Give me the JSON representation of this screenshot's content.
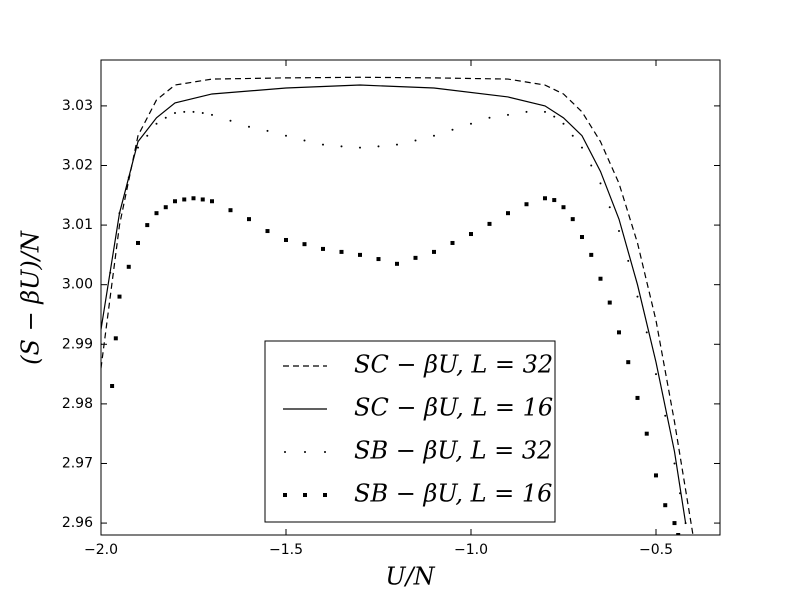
{
  "chart_data": {
    "type": "line",
    "x_label": "U/N",
    "y_label": "(S − βU)/N",
    "xlim": [
      -2.0,
      -0.327
    ],
    "ylim": [
      2.958,
      3.0377
    ],
    "xticks": [
      {
        "value": -2.0,
        "label": "−2.0"
      },
      {
        "value": -1.5,
        "label": "−1.5"
      },
      {
        "value": -1.0,
        "label": "−1.0"
      },
      {
        "value": -0.5,
        "label": "−0.5"
      }
    ],
    "yticks": [
      2.96,
      2.97,
      2.98,
      2.99,
      {
        "value": 3.0,
        "label": "3.00"
      },
      3.01,
      3.02,
      3.03
    ],
    "legend": "lower center",
    "series": [
      {
        "name": "SC − βU, L = 32",
        "style": "dashed",
        "color": "#000000",
        "x": [
          -2.0,
          -1.95,
          -1.9,
          -1.85,
          -1.8,
          -1.7,
          -1.5,
          -1.3,
          -1.1,
          -0.9,
          -0.8,
          -0.75,
          -0.7,
          -0.65,
          -0.6,
          -0.55,
          -0.5,
          -0.45,
          -0.4
        ],
        "values": [
          2.986,
          3.01,
          3.025,
          3.031,
          3.0335,
          3.0345,
          3.0347,
          3.0348,
          3.0347,
          3.0345,
          3.0335,
          3.032,
          3.029,
          3.024,
          3.017,
          3.007,
          2.994,
          2.977,
          2.958
        ]
      },
      {
        "name": "SC − βU, L = 16",
        "style": "solid",
        "color": "#000000",
        "x": [
          -2.0,
          -1.95,
          -1.9,
          -1.85,
          -1.8,
          -1.7,
          -1.5,
          -1.3,
          -1.1,
          -0.9,
          -0.8,
          -0.75,
          -0.7,
          -0.65,
          -0.6,
          -0.55,
          -0.5,
          -0.45,
          -0.42
        ],
        "values": [
          2.9925,
          3.012,
          3.024,
          3.028,
          3.0305,
          3.032,
          3.033,
          3.0335,
          3.033,
          3.0315,
          3.03,
          3.028,
          3.025,
          3.019,
          3.011,
          3.0,
          2.987,
          2.972,
          2.96
        ]
      },
      {
        "name": "SB − βU, L = 32",
        "style": "dots",
        "color": "#000000",
        "x": [
          -2.0,
          -1.975,
          -1.95,
          -1.925,
          -1.9,
          -1.875,
          -1.85,
          -1.825,
          -1.8,
          -1.775,
          -1.75,
          -1.725,
          -1.7,
          -1.65,
          -1.6,
          -1.55,
          -1.5,
          -1.45,
          -1.4,
          -1.35,
          -1.3,
          -1.25,
          -1.2,
          -1.15,
          -1.1,
          -1.05,
          -1.0,
          -0.95,
          -0.9,
          -0.85,
          -0.8,
          -0.775,
          -0.75,
          -0.725,
          -0.7,
          -0.675,
          -0.65,
          -0.625,
          -0.6,
          -0.575,
          -0.55,
          -0.525,
          -0.5,
          -0.475,
          -0.45,
          -0.435,
          -0.42
        ],
        "values": [
          2.99,
          3.002,
          3.012,
          3.018,
          3.023,
          3.025,
          3.027,
          3.028,
          3.0288,
          3.029,
          3.029,
          3.0288,
          3.0285,
          3.0275,
          3.0265,
          3.0258,
          3.025,
          3.0242,
          3.0235,
          3.0232,
          3.023,
          3.0232,
          3.0235,
          3.0242,
          3.025,
          3.026,
          3.027,
          3.028,
          3.0285,
          3.029,
          3.029,
          3.0282,
          3.027,
          3.025,
          3.023,
          3.02,
          3.017,
          3.013,
          3.009,
          3.004,
          2.998,
          2.992,
          2.985,
          2.978,
          2.97,
          2.965,
          2.96
        ]
      },
      {
        "name": "SB − βU, L = 16",
        "style": "x",
        "color": "#000000",
        "x": [
          -1.97,
          -1.96,
          -1.95,
          -1.925,
          -1.9,
          -1.875,
          -1.85,
          -1.825,
          -1.8,
          -1.775,
          -1.75,
          -1.725,
          -1.7,
          -1.65,
          -1.6,
          -1.55,
          -1.5,
          -1.45,
          -1.4,
          -1.35,
          -1.3,
          -1.25,
          -1.2,
          -1.15,
          -1.1,
          -1.05,
          -1.0,
          -0.95,
          -0.9,
          -0.85,
          -0.8,
          -0.775,
          -0.75,
          -0.725,
          -0.7,
          -0.675,
          -0.65,
          -0.625,
          -0.6,
          -0.575,
          -0.55,
          -0.525,
          -0.5,
          -0.475,
          -0.45,
          -0.44
        ],
        "values": [
          2.983,
          2.991,
          2.998,
          3.003,
          3.007,
          3.01,
          3.012,
          3.013,
          3.014,
          3.0143,
          3.0145,
          3.0143,
          3.014,
          3.0125,
          3.011,
          3.009,
          3.0075,
          3.0068,
          3.006,
          3.0055,
          3.005,
          3.0043,
          3.0035,
          3.0045,
          3.0055,
          3.007,
          3.0085,
          3.0102,
          3.012,
          3.0135,
          3.0145,
          3.0142,
          3.013,
          3.011,
          3.008,
          3.005,
          3.001,
          2.997,
          2.992,
          2.987,
          2.981,
          2.975,
          2.968,
          2.963,
          2.96,
          2.958
        ]
      }
    ]
  }
}
